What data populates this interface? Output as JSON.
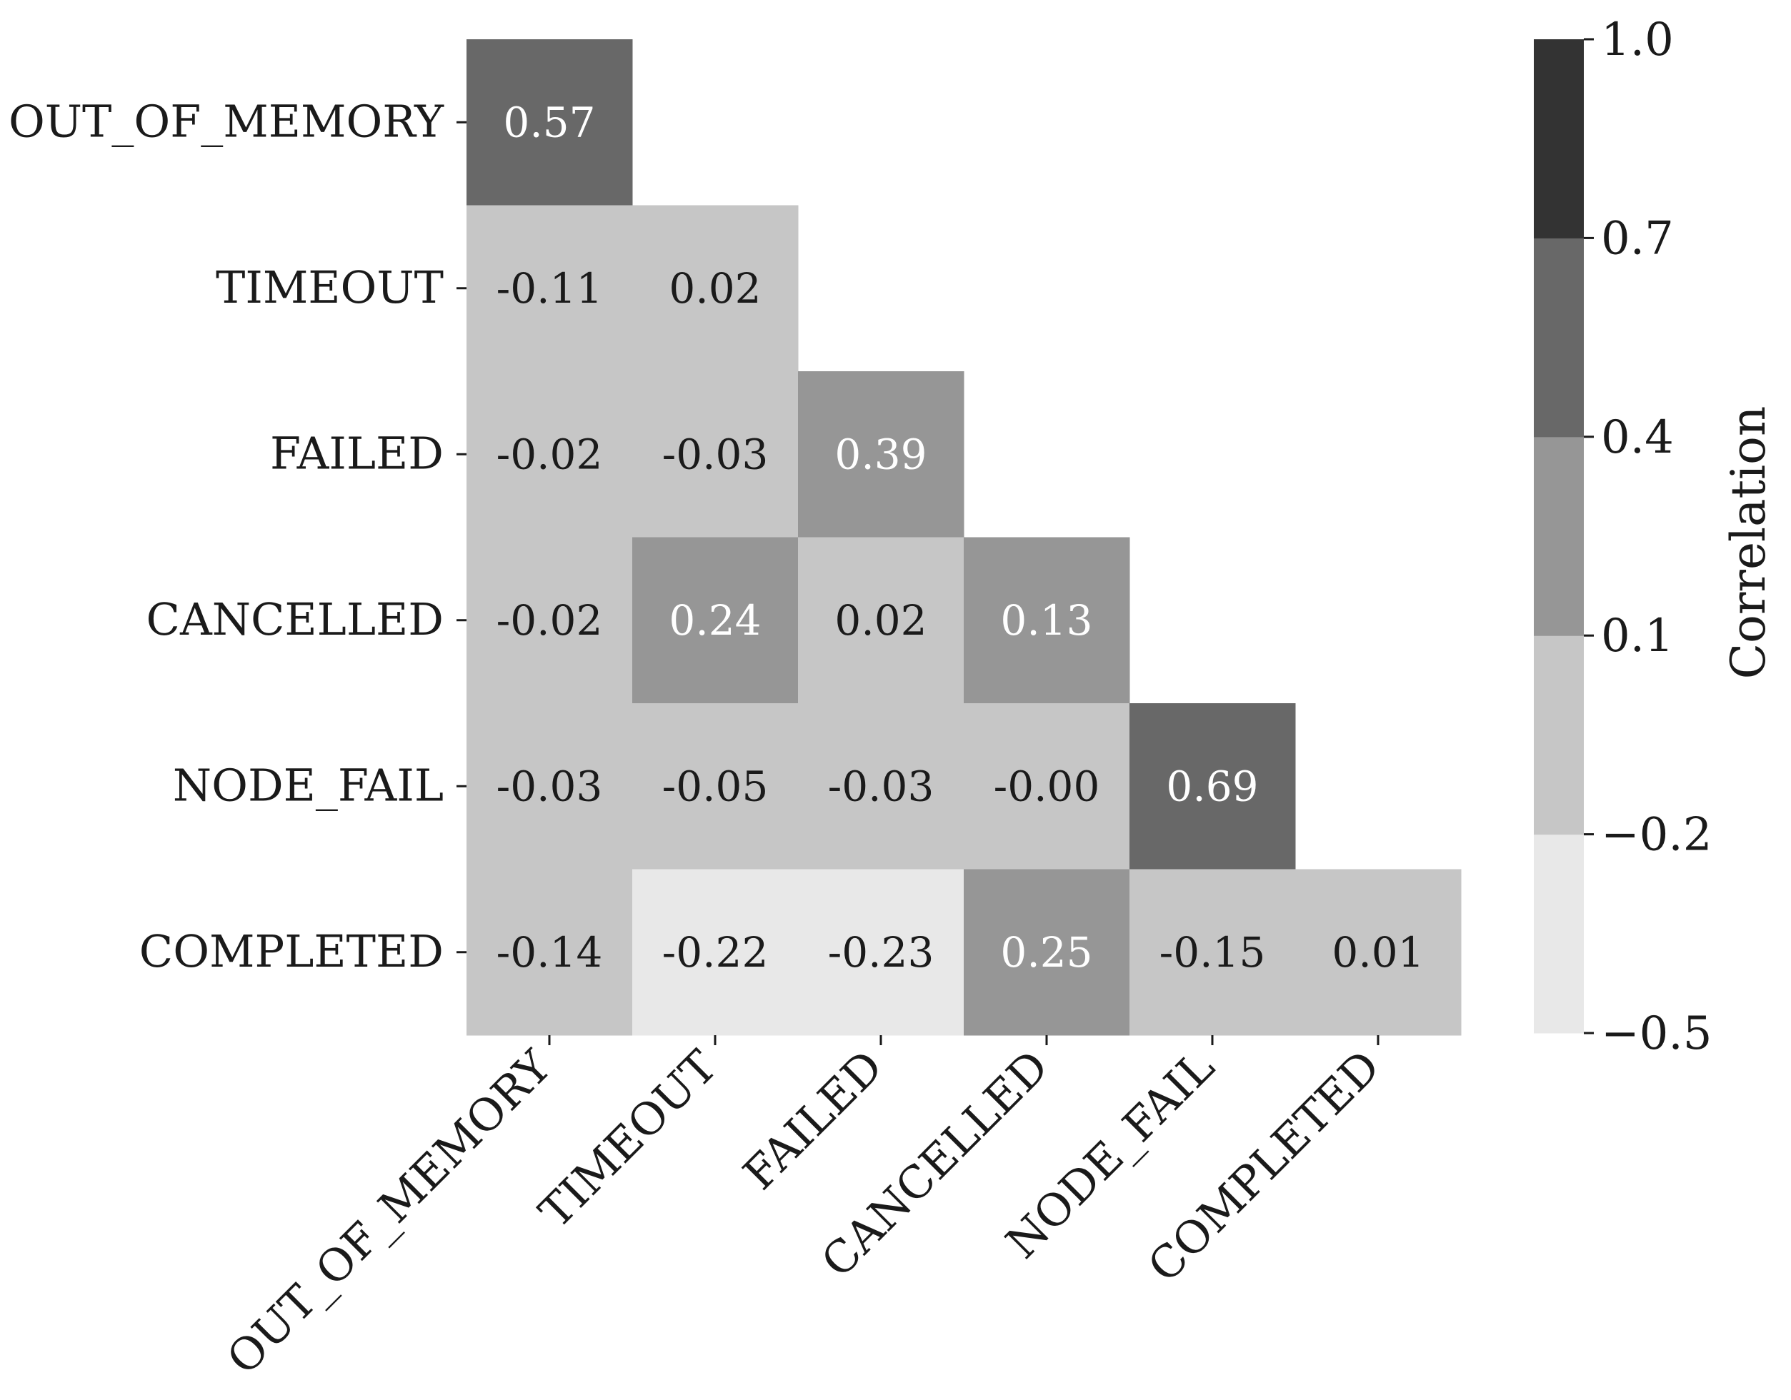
{
  "chart_data": {
    "type": "heatmap",
    "title": "",
    "xlabel": "",
    "ylabel": "",
    "rows": [
      "OUT_OF_MEMORY",
      "TIMEOUT",
      "FAILED",
      "CANCELLED",
      "NODE_FAIL",
      "COMPLETED"
    ],
    "columns": [
      "OUT_OF_MEMORY",
      "TIMEOUT",
      "FAILED",
      "CANCELLED",
      "NODE_FAIL",
      "COMPLETED"
    ],
    "mask": "upper-triangle",
    "values": [
      [
        0.57,
        null,
        null,
        null,
        null,
        null
      ],
      [
        -0.11,
        0.02,
        null,
        null,
        null,
        null
      ],
      [
        -0.02,
        -0.03,
        0.39,
        null,
        null,
        null
      ],
      [
        -0.02,
        0.24,
        0.02,
        0.13,
        null,
        null
      ],
      [
        -0.03,
        -0.05,
        -0.03,
        -0.0,
        0.69,
        null
      ],
      [
        -0.14,
        -0.22,
        -0.23,
        0.25,
        -0.15,
        0.01
      ]
    ],
    "value_labels": [
      [
        "0.57"
      ],
      [
        "-0.11",
        "0.02"
      ],
      [
        "-0.02",
        "-0.03",
        "0.39"
      ],
      [
        "-0.02",
        "0.24",
        "0.02",
        "0.13"
      ],
      [
        "-0.03",
        "-0.05",
        "-0.03",
        "-0.00",
        "0.69"
      ],
      [
        "-0.14",
        "-0.22",
        "-0.23",
        "0.25",
        "-0.15",
        "0.01"
      ]
    ],
    "colorbar": {
      "label": "Correlation",
      "range": [
        -0.5,
        1.0
      ],
      "boundaries": [
        -0.5,
        -0.2,
        0.1,
        0.4,
        0.7,
        1.0
      ],
      "tick_labels": [
        "−0.5",
        "−0.2",
        "0.1",
        "0.4",
        "0.7",
        "1.0"
      ],
      "colors": [
        "#e8e8e8",
        "#c6c6c6",
        "#969696",
        "#686868",
        "#333333"
      ]
    },
    "text_colors": {
      "dark_bg": "#ffffff",
      "light_bg": "#1a1a1a"
    },
    "grid": false,
    "legend": "colorbar-right"
  }
}
